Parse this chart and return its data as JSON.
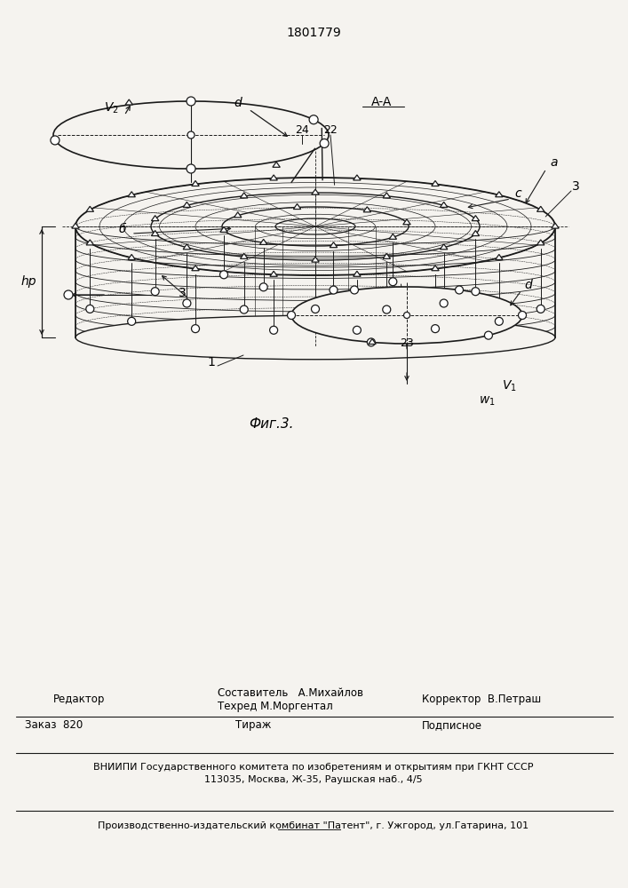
{
  "patent_number": "1801779",
  "fig_label": "Фиг.3.",
  "bg_color": "#f5f3ef",
  "line_color": "#1a1a1a",
  "labels": {
    "AA": "A-A",
    "a": "a",
    "b": "б",
    "c": "c",
    "d_upper": "d",
    "d_lower": "d",
    "hr": "hр",
    "V1": "V₁",
    "V2": "V₂",
    "w1": "w₁",
    "num1": "1",
    "num3": "3",
    "num22": "22",
    "num23": "23",
    "num24": "24"
  },
  "footer": {
    "editor_label": "Редактор",
    "compiler_label": "Составитель",
    "compiler_name": "А.Михайлов",
    "techred_label": "Техред",
    "techred_name": "М.Моргентал",
    "corrector_label": "Корректор",
    "corrector_name": "В.Петраш",
    "order_label": "Заказ  820",
    "tirazh_label": "Тираж",
    "podpisnoe_label": "Подписное",
    "vnipi_line1": "ВНИИПИ Государственного комитета по изобретениям и открытиям при ГКНТ СССР",
    "vnipi_line2": "113035, Москва, Ж-35, Раушская наб., 4/5",
    "production": "Производственно-издательский комбинат \"Патент\", г. Ужгород, ул.Гатарина, 101"
  }
}
